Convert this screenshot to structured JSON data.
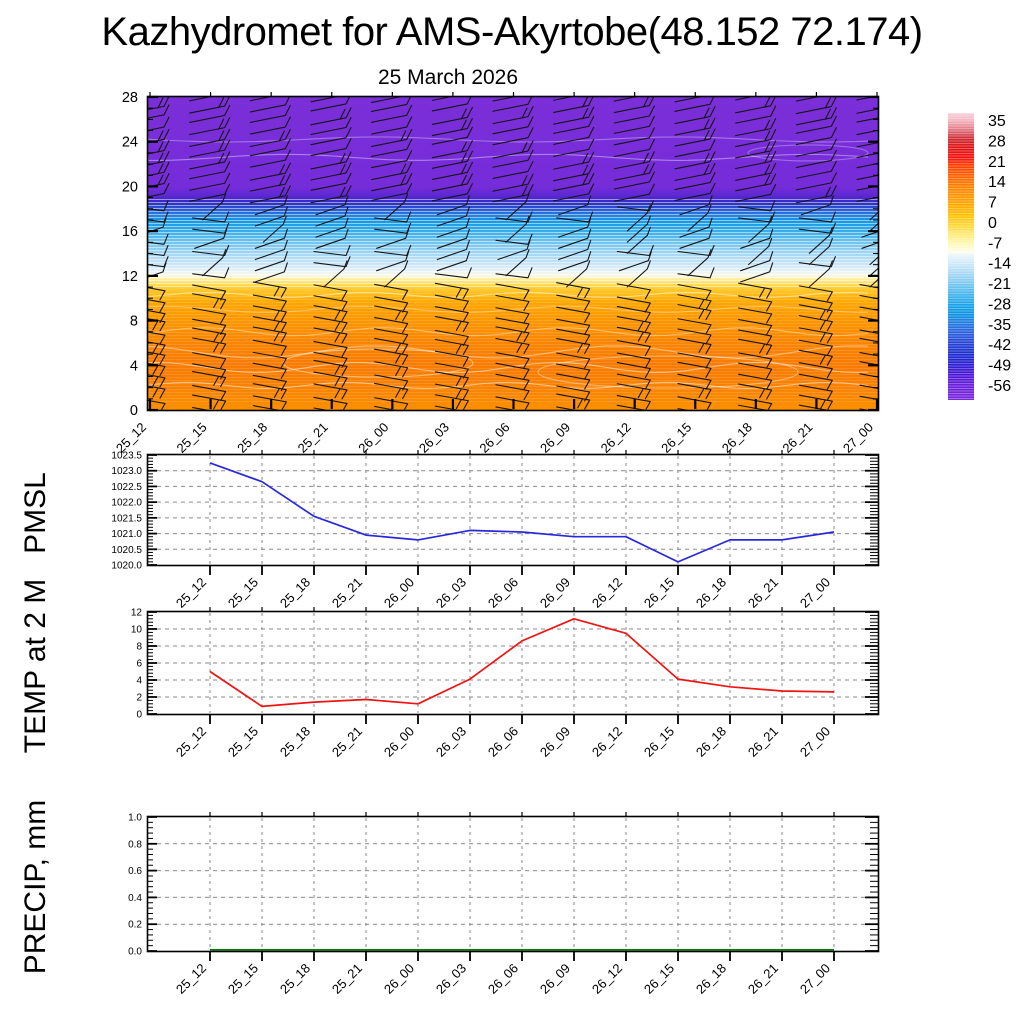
{
  "page": {
    "title": "Kazhydromet for AMS-Akyrtobe(48.152 72.174)",
    "subtitle": "25 March 2026"
  },
  "colorbar": {
    "tick_labels": [
      "35",
      "28",
      "21",
      "14",
      "7",
      "0",
      "-7",
      "-14",
      "-21",
      "-28",
      "-35",
      "-42",
      "-49",
      "-56"
    ],
    "gradient_top_to_bottom": [
      [
        "#F8D0D8",
        0
      ],
      [
        "#F4B6C2",
        2.5
      ],
      [
        "#E2737E",
        6
      ],
      [
        "#CE2A30",
        9
      ],
      [
        "#E21818",
        12
      ],
      [
        "#F51111",
        15.5
      ],
      [
        "#FF3C00",
        18
      ],
      [
        "#FF5F00",
        21.5
      ],
      [
        "#FF7C00",
        25
      ],
      [
        "#FF9300",
        28.5
      ],
      [
        "#FFA900",
        32
      ],
      [
        "#FFC000",
        35.5
      ],
      [
        "#FFD736",
        39
      ],
      [
        "#FFEC7A",
        42.5
      ],
      [
        "#FFF8C0",
        46
      ],
      [
        "#FDFDEA",
        48.5
      ],
      [
        "#EAF5FB",
        49.5
      ],
      [
        "#C8E6F8",
        53
      ],
      [
        "#A0D6F4",
        56.5
      ],
      [
        "#72C6F0",
        60
      ],
      [
        "#42B3EC",
        63.5
      ],
      [
        "#1AA3E8",
        67
      ],
      [
        "#0E95E2",
        70
      ],
      [
        "#2379E2",
        73.5
      ],
      [
        "#2D5DDE",
        77
      ],
      [
        "#2543D6",
        80.5
      ],
      [
        "#1C2ECE",
        84
      ],
      [
        "#2A21D2",
        87.5
      ],
      [
        "#4A17D6",
        91
      ],
      [
        "#6B1FDA",
        95
      ],
      [
        "#7B2BDC",
        100
      ]
    ]
  },
  "chart_data": [
    {
      "type": "heatmap",
      "name": "temperature-height-time-section",
      "title": "25 March 2026",
      "x_categories": [
        "25_12",
        "25_15",
        "25_18",
        "25_21",
        "26_00",
        "26_03",
        "26_06",
        "26_09",
        "26_12",
        "26_15",
        "26_18",
        "26_21",
        "27_00"
      ],
      "ylim": [
        0,
        28
      ],
      "y_ticks": [
        0,
        4,
        8,
        12,
        16,
        20,
        24,
        28
      ],
      "overlay": "wind barbs at every level and time step",
      "colorbar_ticks": [
        35,
        28,
        21,
        14,
        7,
        0,
        -7,
        -14,
        -21,
        -28,
        -35,
        -42,
        -49,
        -56
      ],
      "temperature_profile": {
        "heights": [
          0,
          2,
          4,
          6,
          8,
          10,
          11,
          12,
          13,
          14,
          15,
          16,
          17,
          18,
          19,
          20,
          24,
          28
        ],
        "values_c": [
          9,
          11,
          12,
          10,
          6,
          1,
          -3,
          -14,
          -19,
          -23,
          -28,
          -32,
          -37,
          -47,
          -57,
          -60,
          -61,
          -61
        ]
      },
      "fill_gradient_bottom_to_top": [
        [
          "#FC9000",
          0
        ],
        [
          "#F98300",
          7
        ],
        [
          "#F87B00",
          14
        ],
        [
          "#FA8400",
          21
        ],
        [
          "#FD9700",
          28.5
        ],
        [
          "#FFA500",
          34
        ],
        [
          "#FFC01E",
          37.5
        ],
        [
          "#FFD94E",
          40
        ],
        [
          "#FFEE9E",
          41.8
        ],
        [
          "#FBF9E4",
          42.9
        ],
        [
          "#E8F3FA",
          44.3
        ],
        [
          "#CBE6F7",
          46.4
        ],
        [
          "#A3D6F3",
          50
        ],
        [
          "#6FC3EE",
          53.6
        ],
        [
          "#38ADE9",
          57.1
        ],
        [
          "#179CE5",
          60
        ],
        [
          "#2187E0",
          61.8
        ],
        [
          "#2B64D8",
          63.6
        ],
        [
          "#2A47CD",
          65
        ],
        [
          "#2C31C0",
          66.1
        ],
        [
          "#4226CC",
          67.1
        ],
        [
          "#6229D3",
          68.9
        ],
        [
          "#752CD9",
          71.4
        ],
        [
          "#7B2FD8",
          100
        ]
      ],
      "barb_color": "#161616"
    },
    {
      "type": "line",
      "name": "PMSL",
      "ylabel": "PMSL",
      "x": [
        "25_12",
        "25_15",
        "25_18",
        "25_21",
        "26_00",
        "26_03",
        "26_06",
        "26_09",
        "26_12",
        "26_15",
        "26_18",
        "26_21",
        "27_00"
      ],
      "values": [
        1023.25,
        1022.65,
        1021.55,
        1020.95,
        1020.8,
        1021.1,
        1021.05,
        1020.9,
        1020.9,
        1020.1,
        1020.8,
        1020.8,
        1021.05
      ],
      "ylim": [
        1020.0,
        1023.5
      ],
      "y_ticks": [
        1020.0,
        1020.5,
        1021.0,
        1021.5,
        1022.0,
        1022.5,
        1023.0,
        1023.5
      ],
      "ytick_labels": [
        "1020.0",
        "1020.5",
        "1021.0",
        "1021.5",
        "1022.0",
        "1022.5",
        "1023.0",
        "1023.5"
      ],
      "y_minor": 0.1,
      "color": "#2828DC",
      "grid": "dashed"
    },
    {
      "type": "line",
      "name": "TEMP at 2 M",
      "ylabel": "TEMP at 2 M",
      "x": [
        "25_12",
        "25_15",
        "25_18",
        "25_21",
        "26_00",
        "26_03",
        "26_06",
        "26_09",
        "26_12",
        "26_15",
        "26_18",
        "26_21",
        "27_00"
      ],
      "values": [
        5.0,
        0.9,
        1.4,
        1.7,
        1.2,
        4.1,
        8.6,
        11.2,
        9.5,
        4.1,
        3.2,
        2.7,
        2.6
      ],
      "ylim": [
        0,
        12
      ],
      "y_ticks": [
        0,
        2,
        4,
        6,
        8,
        10,
        12
      ],
      "ytick_labels": [
        "0",
        "2",
        "4",
        "6",
        "8",
        "10",
        "12"
      ],
      "y_minor": 0.4,
      "color": "#EE1414",
      "grid": "dashed"
    },
    {
      "type": "line",
      "name": "PRECIP, mm",
      "ylabel": "PRECIP, mm",
      "x": [
        "25_12",
        "25_15",
        "25_18",
        "25_21",
        "26_00",
        "26_03",
        "26_06",
        "26_09",
        "26_12",
        "26_15",
        "26_18",
        "26_21",
        "27_00"
      ],
      "values": [
        0,
        0,
        0,
        0,
        0,
        0,
        0,
        0,
        0,
        0,
        0,
        0,
        0
      ],
      "ylim": [
        0,
        1
      ],
      "y_ticks": [
        0,
        0.2,
        0.4,
        0.6,
        0.8,
        1.0
      ],
      "ytick_labels": [
        "0.0",
        "0.2",
        "0.4",
        "0.6",
        "0.8",
        "1.0"
      ],
      "y_minor": 0.04,
      "color": "#007A00",
      "grid": "dashed"
    }
  ]
}
